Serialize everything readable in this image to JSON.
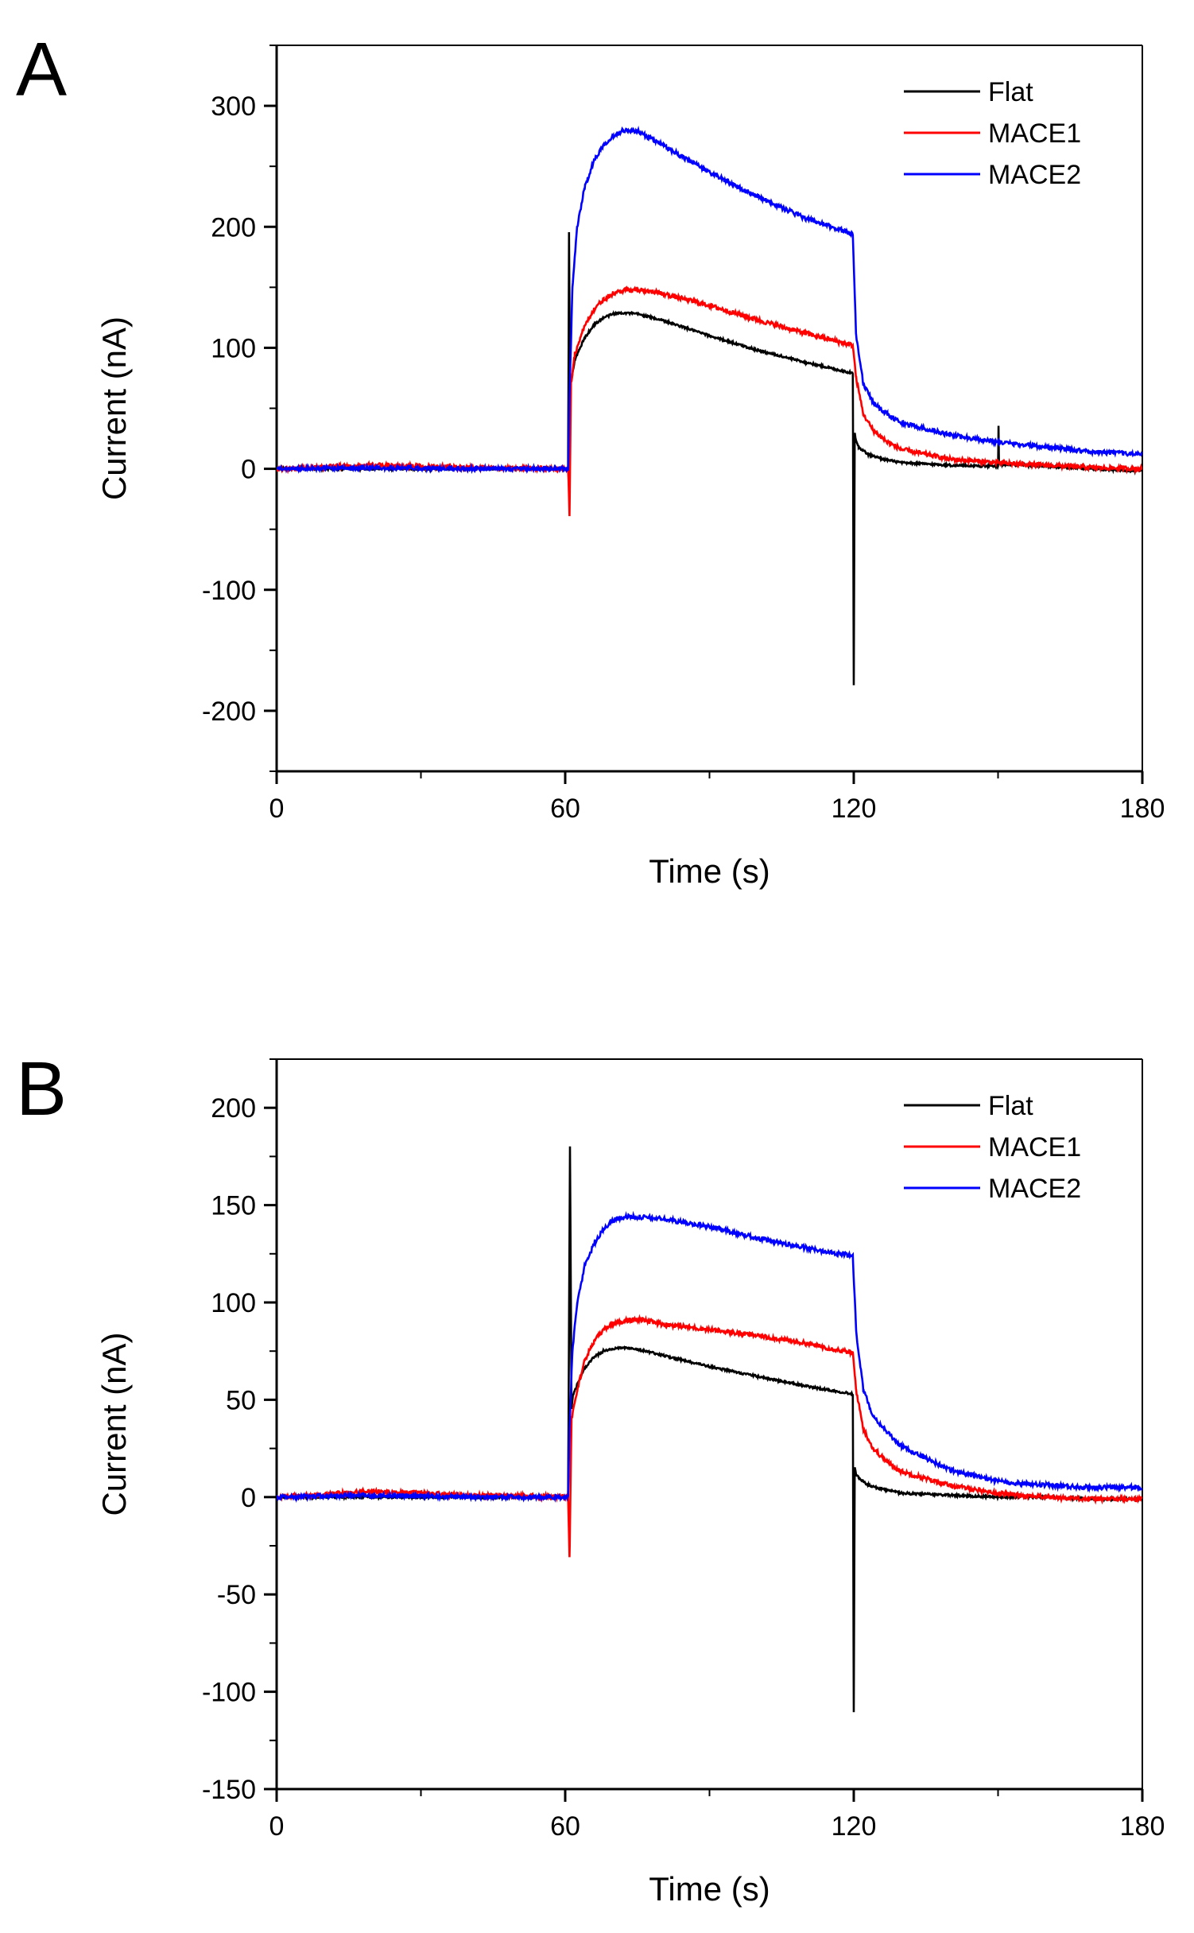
{
  "panels": [
    {
      "letter": "A",
      "chart_data": {
        "type": "line",
        "title": "",
        "xlabel": "Time (s)",
        "ylabel": "Current (nA)",
        "xlim": [
          0,
          180
        ],
        "ylim": [
          -250,
          350
        ],
        "xticks": [
          0,
          60,
          120,
          180
        ],
        "xtick_labels": [
          "0",
          "60",
          "120",
          "180"
        ],
        "yticks": [
          -200,
          -100,
          0,
          100,
          200,
          300
        ],
        "ytick_labels": [
          "-200",
          "-100",
          "0",
          "100",
          "200",
          "300"
        ],
        "legend": "top-right",
        "series": [
          {
            "name": "Flat",
            "color": "#000000",
            "x": [
              0,
              30,
              60.6,
              60.8,
              61.0,
              61.2,
              62,
              64,
              66,
              68,
              70,
              72,
              75,
              80,
              90,
              100,
              110,
              119.8,
              120.0,
              120.2,
              120.4,
              121,
              123,
              126,
              130,
              140,
              150,
              150.1,
              150.2,
              160,
              170,
              180
            ],
            "y": [
              0,
              0,
              0,
              195,
              60,
              72,
              90,
              108,
              119,
              125,
              128,
              129,
              128,
              123,
              110,
              98,
              88,
              79,
              -178,
              30,
              25,
              18,
              12,
              8,
              5,
              3,
              2,
              35,
              4,
              2,
              0,
              -2
            ]
          },
          {
            "name": "MACE1",
            "color": "#ff0000",
            "x": [
              0,
              20,
              40,
              60.6,
              60.9,
              61.2,
              62,
              64,
              66,
              68,
              70,
              73,
              76,
              80,
              90,
              100,
              110,
              119.8,
              120.5,
              122,
              124,
              127,
              130,
              140,
              150,
              160,
              170,
              180
            ],
            "y": [
              0,
              3,
              1,
              0,
              -38,
              70,
              95,
              118,
              132,
              140,
              145,
              148,
              148,
              145,
              135,
              123,
              112,
              102,
              75,
              45,
              32,
              22,
              16,
              8,
              5,
              3,
              1,
              0
            ]
          },
          {
            "name": "MACE2",
            "color": "#0000ff",
            "x": [
              0,
              20,
              40,
              60.6,
              60.9,
              61.5,
              62.5,
              64,
              66,
              68,
              70,
              72,
              75,
              80,
              90,
              100,
              110,
              119.8,
              120.5,
              122,
              124,
              127,
              130,
              140,
              150,
              160,
              170,
              180
            ],
            "y": [
              0,
              1,
              0,
              0,
              60,
              150,
              200,
              232,
              255,
              268,
              275,
              280,
              279,
              268,
              245,
              225,
              207,
              194,
              110,
              70,
              55,
              45,
              38,
              28,
              22,
              18,
              14,
              12
            ]
          }
        ]
      }
    },
    {
      "letter": "B",
      "chart_data": {
        "type": "line",
        "title": "",
        "xlabel": "Time (s)",
        "ylabel": "Current (nA)",
        "xlim": [
          0,
          180
        ],
        "ylim": [
          -150,
          225
        ],
        "xticks": [
          0,
          60,
          120,
          180
        ],
        "xtick_labels": [
          "0",
          "60",
          "120",
          "180"
        ],
        "yticks": [
          -150,
          -100,
          -50,
          0,
          50,
          100,
          150,
          200
        ],
        "ytick_labels": [
          "-150",
          "-100",
          "-50",
          "0",
          "50",
          "100",
          "150",
          "200"
        ],
        "legend": "top-right",
        "series": [
          {
            "name": "Flat",
            "color": "#000000",
            "x": [
              0,
              30,
              60.6,
              61.0,
              61.3,
              61.6,
              62.5,
              64,
              66,
              68,
              70,
              72,
              75,
              80,
              90,
              100,
              110,
              119.8,
              120.0,
              120.2,
              120.5,
              121,
              123,
              126,
              130,
              140,
              150,
              160,
              170,
              180
            ],
            "y": [
              0,
              0,
              0,
              180,
              45,
              52,
              58,
              66,
              72,
              75,
              76,
              77,
              76,
              73,
              67,
              62,
              57,
              53,
              -110,
              15,
              12,
              10,
              6,
              4,
              2,
              1,
              0,
              0,
              -1,
              -1
            ]
          },
          {
            "name": "MACE1",
            "color": "#ff0000",
            "x": [
              0,
              20,
              40,
              60.6,
              60.9,
              61.3,
              62.5,
              64,
              66,
              68,
              70,
              73,
              76,
              80,
              90,
              100,
              110,
              119.8,
              120.5,
              122,
              124,
              127,
              130,
              140,
              150,
              160,
              170,
              180
            ],
            "y": [
              0,
              3,
              1,
              0,
              -32,
              40,
              55,
              70,
              80,
              86,
              89,
              91,
              91,
              89,
              86,
              83,
              79,
              74,
              55,
              35,
              25,
              18,
              13,
              6,
              2,
              0,
              -1,
              -1
            ]
          },
          {
            "name": "MACE2",
            "color": "#0000ff",
            "x": [
              0,
              20,
              40,
              60.6,
              60.9,
              61.5,
              62.5,
              64,
              66,
              68,
              70,
              72,
              75,
              80,
              90,
              100,
              110,
              119.8,
              120.5,
              122,
              124,
              127,
              130,
              140,
              150,
              160,
              170,
              180
            ],
            "y": [
              0,
              1,
              0,
              0,
              35,
              75,
              100,
              118,
              130,
              138,
              142,
              144,
              144,
              143,
              139,
              133,
              128,
              124,
              85,
              55,
              42,
              33,
              26,
              14,
              8,
              6,
              5,
              5
            ]
          }
        ]
      }
    }
  ]
}
